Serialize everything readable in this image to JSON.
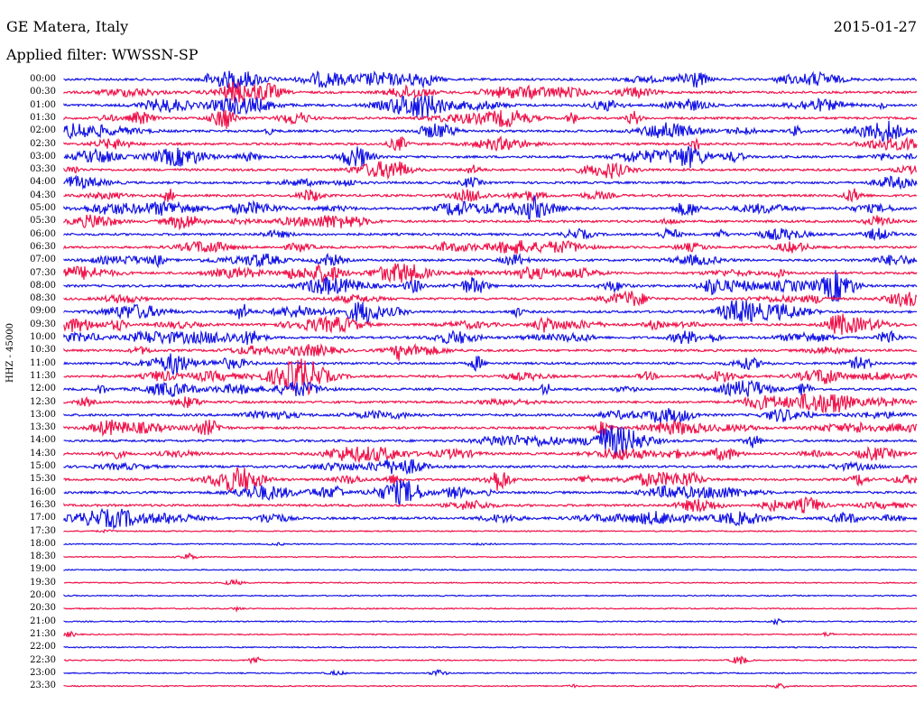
{
  "header": {
    "title": "GE Matera, Italy",
    "date": "2015-01-27",
    "filter": "Applied filter: WWSSN-SP"
  },
  "axis": {
    "channel_label": "HHZ - 45000"
  },
  "colors": {
    "even_row": "#1414e6",
    "odd_row": "#f0144b",
    "background": "#ffffff"
  },
  "rows": [
    {
      "label": "00:00"
    },
    {
      "label": "00:30"
    },
    {
      "label": "01:00"
    },
    {
      "label": "01:30"
    },
    {
      "label": "02:00"
    },
    {
      "label": "02:30"
    },
    {
      "label": "03:00"
    },
    {
      "label": "03:30"
    },
    {
      "label": "04:00"
    },
    {
      "label": "04:30"
    },
    {
      "label": "05:00"
    },
    {
      "label": "05:30"
    },
    {
      "label": "06:00"
    },
    {
      "label": "06:30"
    },
    {
      "label": "07:00"
    },
    {
      "label": "07:30"
    },
    {
      "label": "08:00"
    },
    {
      "label": "08:30"
    },
    {
      "label": "09:00"
    },
    {
      "label": "09:30"
    },
    {
      "label": "10:00"
    },
    {
      "label": "10:30"
    },
    {
      "label": "11:00"
    },
    {
      "label": "11:30"
    },
    {
      "label": "12:00"
    },
    {
      "label": "12:30"
    },
    {
      "label": "13:00"
    },
    {
      "label": "13:30"
    },
    {
      "label": "14:00"
    },
    {
      "label": "14:30"
    },
    {
      "label": "15:00"
    },
    {
      "label": "15:30"
    },
    {
      "label": "16:00"
    },
    {
      "label": "16:30"
    },
    {
      "label": "17:00"
    },
    {
      "label": "17:30"
    },
    {
      "label": "18:00"
    },
    {
      "label": "18:30"
    },
    {
      "label": "19:00"
    },
    {
      "label": "19:30"
    },
    {
      "label": "20:00"
    },
    {
      "label": "20:30"
    },
    {
      "label": "21:00"
    },
    {
      "label": "21:30"
    },
    {
      "label": "22:00"
    },
    {
      "label": "22:30"
    },
    {
      "label": "23:00"
    },
    {
      "label": "23:30"
    }
  ]
}
